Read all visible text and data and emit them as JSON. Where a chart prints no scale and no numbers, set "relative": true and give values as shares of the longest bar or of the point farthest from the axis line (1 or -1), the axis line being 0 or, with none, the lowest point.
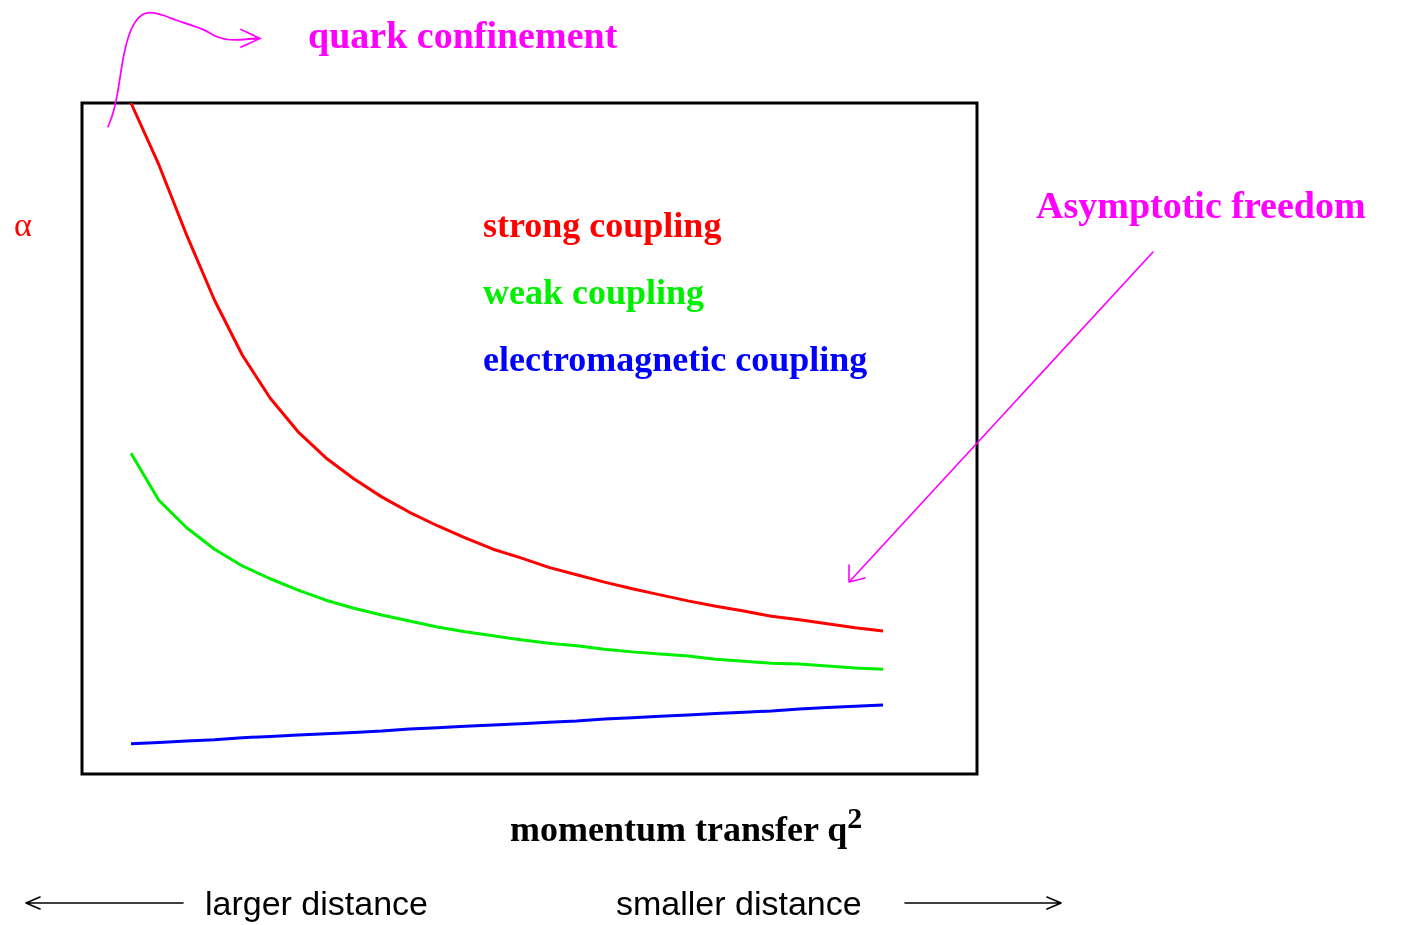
{
  "chart_data": {
    "type": "line",
    "relative": true,
    "ylabel": "α",
    "xlabel": "momentum transfer q$^{2}$",
    "legend": "top right",
    "tick_labels": false,
    "marker": "none",
    "line_style": "solid",
    "annotations": [
      "quark confinement",
      "Asymptotic freedom",
      "larger distance",
      "smaller distance"
    ],
    "categories": [
      null,
      null,
      null,
      null,
      null,
      null,
      null,
      null,
      null,
      null,
      null,
      null,
      null,
      null,
      null,
      null,
      null,
      null,
      null,
      null,
      null,
      null,
      null,
      null,
      null,
      null,
      null,
      null
    ],
    "series": [
      {
        "name": "strong coupling",
        "color": "#ff0000",
        "values": [
          1.0,
          0.908,
          0.803,
          0.706,
          0.624,
          0.56,
          0.51,
          0.471,
          0.44,
          0.413,
          0.39,
          0.37,
          0.352,
          0.335,
          0.322,
          0.308,
          0.297,
          0.286,
          0.276,
          0.267,
          0.258,
          0.25,
          0.243,
          0.235,
          0.23,
          0.224,
          0.218,
          0.213
        ]
      },
      {
        "name": "weak coupling",
        "color": "#00ee00",
        "values": [
          0.478,
          0.408,
          0.367,
          0.335,
          0.31,
          0.291,
          0.274,
          0.259,
          0.247,
          0.237,
          0.228,
          0.219,
          0.212,
          0.206,
          0.2,
          0.195,
          0.191,
          0.186,
          0.182,
          0.179,
          0.176,
          0.171,
          0.168,
          0.165,
          0.164,
          0.161,
          0.158,
          0.156
        ]
      },
      {
        "name": "electromagnetic coupling",
        "color": "#0000ff",
        "values": [
          0.045,
          0.047,
          0.049,
          0.051,
          0.054,
          0.056,
          0.058,
          0.06,
          0.062,
          0.064,
          0.067,
          0.069,
          0.071,
          0.073,
          0.075,
          0.077,
          0.079,
          0.082,
          0.084,
          0.086,
          0.088,
          0.09,
          0.092,
          0.094,
          0.097,
          0.099,
          0.101,
          0.103
        ]
      }
    ]
  }
}
